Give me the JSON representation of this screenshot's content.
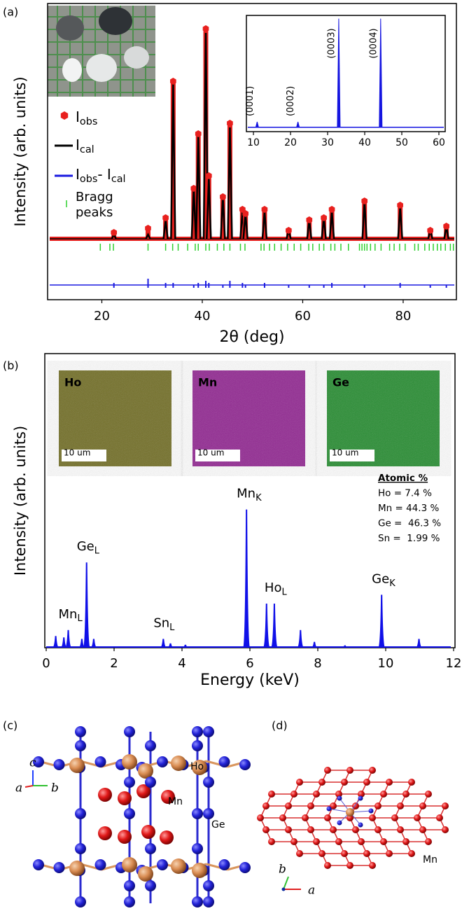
{
  "chart_data": [
    {
      "type": "diffraction",
      "label": "(a)",
      "xlabel": "2θ (deg)",
      "ylabel": "Intensity (arb. units)",
      "xlim": [
        9.2,
        90.6
      ],
      "xticks": [
        20,
        40,
        60,
        80
      ],
      "ylim": [
        -0.29,
        1.12
      ],
      "x": [
        22.4,
        29.2,
        32.7,
        34.2,
        38.3,
        39.2,
        40.7,
        41.3,
        44.1,
        45.5,
        48.0,
        48.6,
        52.4,
        57.2,
        61.3,
        64.2,
        65.8,
        72.3,
        79.4,
        85.4,
        88.6
      ],
      "series": [
        {
          "name": [
            "I",
            "obs"
          ],
          "color": "#e8201e",
          "values": [
            0.03,
            0.05,
            0.1,
            0.75,
            0.24,
            0.5,
            1.0,
            0.3,
            0.2,
            0.55,
            0.14,
            0.12,
            0.14,
            0.04,
            0.09,
            0.1,
            0.14,
            0.18,
            0.16,
            0.04,
            0.06
          ]
        },
        {
          "name": [
            "I",
            "cal"
          ],
          "color": "#000000",
          "values": [
            0.02,
            0.02,
            0.09,
            0.74,
            0.24,
            0.49,
            0.98,
            0.29,
            0.2,
            0.53,
            0.13,
            0.12,
            0.13,
            0.04,
            0.09,
            0.1,
            0.13,
            0.18,
            0.15,
            0.04,
            0.06
          ]
        },
        {
          "name": [
            "I",
            "obs",
            "- I",
            "cal"
          ],
          "color": "#1a1ae0",
          "values": [
            0.01,
            0.03,
            0.01,
            0.01,
            0,
            0.01,
            0.02,
            0.01,
            0,
            0.02,
            0.01,
            0,
            0.01,
            0,
            0,
            0,
            0.01,
            0,
            0.01,
            0,
            0
          ]
        }
      ],
      "bragg_peaks": {
        "name": [
          "Bragg",
          "peaks"
        ],
        "color": "#2fd02f",
        "x": [
          19.7,
          21.6,
          22.3,
          29.2,
          32.7,
          34.1,
          35.2,
          37.1,
          38.6,
          39.2,
          40.7,
          41.4,
          43.0,
          44.3,
          45.5,
          47.6,
          48.5,
          51.7,
          52.3,
          53.4,
          54.4,
          55.7,
          57.0,
          58.3,
          59.6,
          61.2,
          62.0,
          63.3,
          64.2,
          65.6,
          66.4,
          67.6,
          69.1,
          71.3,
          71.8,
          72.3,
          72.8,
          73.5,
          74.4,
          75.6,
          77.3,
          78.2,
          79.3,
          80.4,
          82.3,
          83.0,
          84.3,
          85.2,
          86.0,
          86.8,
          87.5,
          88.4,
          89.4,
          90.0
        ]
      }
    },
    {
      "type": "spectrum",
      "xlim": [
        8.1,
        61.7
      ],
      "xticks": [
        10,
        20,
        30,
        40,
        50,
        60
      ],
      "ylim": [
        -0.04,
        1.03
      ],
      "x": [
        11,
        22,
        33,
        44.3
      ],
      "values": [
        0.05,
        0.05,
        1.0,
        1.0
      ],
      "labels": [
        "(0001)",
        "(0002)",
        "(0003)",
        "(0004)"
      ],
      "color": "#1515e0"
    },
    {
      "type": "spectrum",
      "label": "(b)",
      "xlabel": "Energy (keV)",
      "ylabel": "Intensity (arb. units)",
      "xlim": [
        0,
        12
      ],
      "xticks": [
        0,
        2,
        4,
        6,
        8,
        10,
        12
      ],
      "ylim": [
        0,
        1
      ],
      "color": "#1010e8",
      "x": [
        0.28,
        0.52,
        0.65,
        1.05,
        1.19,
        1.4,
        3.45,
        3.66,
        4.1,
        5.9,
        6.49,
        6.72,
        7.49,
        7.9,
        8.8,
        9.88,
        10.98
      ],
      "values": [
        0.04,
        0.035,
        0.06,
        0.03,
        0.29,
        0.03,
        0.03,
        0.015,
        0.01,
        0.47,
        0.15,
        0.15,
        0.06,
        0.02,
        0.008,
        0.18,
        0.03
      ],
      "labels": [
        null,
        null,
        [
          "Mn",
          "L"
        ],
        null,
        [
          "Ge",
          "L"
        ],
        null,
        [
          "Sn",
          "L"
        ],
        null,
        null,
        [
          "Mn",
          "K"
        ],
        null,
        [
          "Ho",
          "L"
        ],
        null,
        null,
        null,
        [
          "Ge",
          "K"
        ],
        null
      ],
      "maps": [
        {
          "label": "Ho",
          "scale_bar": "10 um",
          "color": "#6e6a1e"
        },
        {
          "label": "Mn",
          "scale_bar": "10 um",
          "color": "#8f1f8f"
        },
        {
          "label": "Ge",
          "scale_bar": "10 um",
          "color": "#1f8a2a"
        }
      ],
      "composition": [
        "Atomic %",
        "Ho = 7.4 %",
        "Mn = 44.3 %",
        "Ge =  46.3 %",
        "Sn =  1.99 %"
      ]
    }
  ],
  "structures": {
    "c": {
      "label": "(c)",
      "atoms": [
        "Ho",
        "Mn",
        "Ge"
      ],
      "axes": [
        "a",
        "b",
        "c"
      ]
    },
    "d": {
      "label": "(d)",
      "atoms": [
        "Mn"
      ],
      "axes": [
        "a",
        "b"
      ]
    }
  }
}
